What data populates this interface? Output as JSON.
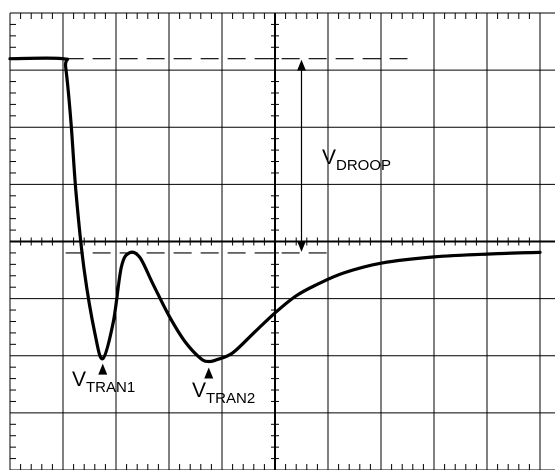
{
  "chart_data": {
    "type": "line",
    "grid": true,
    "xlim": [
      0,
      10
    ],
    "ylim": [
      -4,
      4
    ],
    "series": [
      {
        "x": [
          0,
          1.0,
          1.05,
          1.15,
          1.25,
          1.4,
          1.6,
          1.75,
          1.95,
          2.1,
          2.25,
          2.45,
          2.7,
          3.0,
          3.3,
          3.6,
          3.75,
          3.9,
          4.2,
          4.6,
          5.0,
          5.4,
          5.8,
          6.3,
          7.0,
          8.0,
          9.0,
          10.0
        ],
        "y": [
          3.2,
          3.2,
          3.05,
          2.1,
          0.8,
          -0.5,
          -1.6,
          -2.05,
          -1.4,
          -0.45,
          -0.2,
          -0.28,
          -0.75,
          -1.3,
          -1.75,
          -2.05,
          -2.1,
          -2.07,
          -1.95,
          -1.6,
          -1.25,
          -0.95,
          -0.75,
          -0.55,
          -0.38,
          -0.27,
          -0.22,
          -0.19
        ]
      }
    ],
    "reference_lines": [
      {
        "y": 3.2,
        "style": "dashed"
      },
      {
        "y": -0.2,
        "style": "dashed"
      }
    ],
    "annotations": {
      "vdroop": {
        "base": "V",
        "sub": "DROOP"
      },
      "vtran1": {
        "base": "V",
        "sub": "TRAN1",
        "point": {
          "x": 1.75,
          "y": -2.05
        }
      },
      "vtran2": {
        "base": "V",
        "sub": "TRAN2",
        "point": {
          "x": 3.75,
          "y": -2.1
        }
      }
    }
  }
}
